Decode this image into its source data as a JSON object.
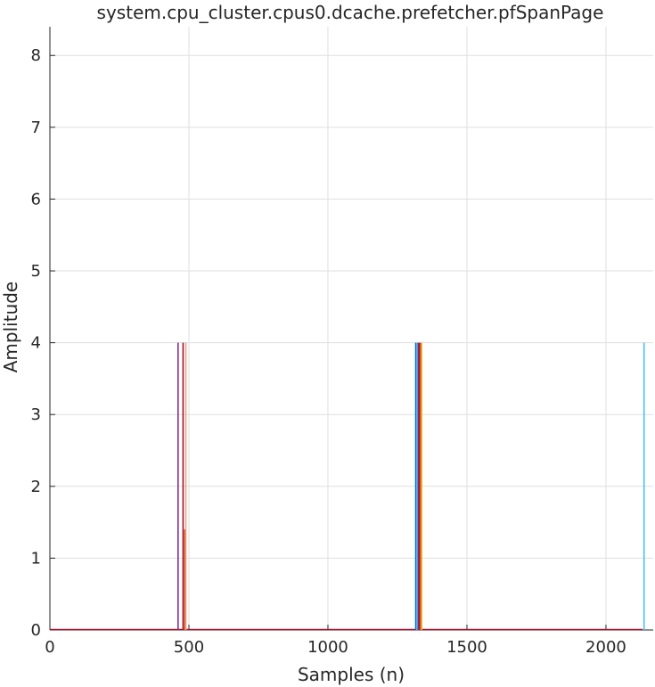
{
  "chart_data": {
    "type": "line",
    "title": "system.cpu_cluster.cpus0.dcache.prefetcher.pfSpanPage",
    "xlabel": "Samples (n)",
    "ylabel": "Amplitude",
    "xlim": [
      0,
      2170
    ],
    "ylim": [
      0,
      8.4
    ],
    "xticks": [
      0,
      500,
      1000,
      1500,
      2000
    ],
    "yticks": [
      0,
      1,
      2,
      3,
      4,
      5,
      6,
      7,
      8
    ],
    "grid": true,
    "baseline_color": "#a2142f",
    "spikes": [
      {
        "x": 461,
        "y": 4,
        "color": "#7e2f8e"
      },
      {
        "x": 479,
        "y": 4,
        "color": "#a2142f"
      },
      {
        "x": 485,
        "y": 1.4,
        "color": "#d95319"
      },
      {
        "x": 489,
        "y": 4,
        "color": "#f4a582"
      },
      {
        "x": 1316,
        "y": 4,
        "color": "#0072bd"
      },
      {
        "x": 1320,
        "y": 4,
        "color": "#4dbeee"
      },
      {
        "x": 1325,
        "y": 4,
        "color": "#7e2f8e"
      },
      {
        "x": 1329,
        "y": 4,
        "color": "#a2142f"
      },
      {
        "x": 1333,
        "y": 4,
        "color": "#d95319"
      },
      {
        "x": 1337,
        "y": 4,
        "color": "#edb120"
      },
      {
        "x": 2137,
        "y": 4,
        "color": "#4dbeee"
      }
    ]
  }
}
